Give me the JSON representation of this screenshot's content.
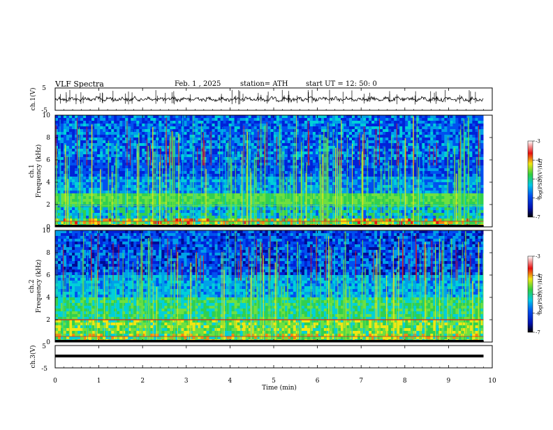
{
  "header": {
    "title": "VLF  Spectra",
    "date": "Feb. 1  , 2025",
    "station": "station= ATH",
    "start": "start  UT  =    12: 50: 0"
  },
  "chart_data": [
    {
      "type": "line",
      "panel": "ch1-waveform",
      "ylabel": "ch.1(V)",
      "ylim": [
        -5,
        5
      ],
      "yticks": [
        "5",
        "-5"
      ],
      "xlim": [
        0,
        10
      ],
      "data_end_min": 9.8,
      "description_series": "noisy waveform near 0 V with sharp spikes"
    },
    {
      "type": "heatmap",
      "panel": "ch1-spectrogram",
      "ylabel": "ch.1\nFrequency  (kHz)",
      "ylabel_line1": "ch.1",
      "ylabel_line2": "Frequency  (kHz)",
      "ylim": [
        0,
        10
      ],
      "yticks": [
        "0",
        "2",
        "4",
        "6",
        "8",
        "10"
      ],
      "xlim": [
        0,
        10
      ],
      "data_end_min": 9.8,
      "colorbar": {
        "label": "log(PSD)(V²/Hz)",
        "range": [
          -7,
          -3
        ],
        "ticks": [
          "-3",
          "-4",
          "-5",
          "-6",
          "-7"
        ]
      }
    },
    {
      "type": "heatmap",
      "panel": "ch2-spectrogram",
      "ylabel_line1": "ch.2",
      "ylabel_line2": "Frequency  (kHz)",
      "ylim": [
        0,
        10
      ],
      "yticks": [
        "0",
        "2",
        "4",
        "6",
        "8",
        "10"
      ],
      "xlim": [
        0,
        10
      ],
      "data_end_min": 9.8,
      "colorbar": {
        "label": "log(PSD)(V²/Hz)",
        "range": [
          -7,
          -3
        ],
        "ticks": [
          "-3",
          "-4",
          "-5",
          "-6",
          "-7"
        ]
      }
    },
    {
      "type": "line",
      "panel": "ch3-waveform",
      "ylabel": "ch.3(V)",
      "ylim": [
        -5,
        5
      ],
      "yticks": [
        "5",
        "-5"
      ],
      "xlim": [
        0,
        10
      ],
      "data_end_min": 9.8,
      "flat_level": 0.3
    }
  ],
  "xaxis": {
    "label": "Time  (min)",
    "ticks": [
      "0",
      "1",
      "2",
      "3",
      "4",
      "5",
      "6",
      "7",
      "8",
      "9",
      "10"
    ]
  },
  "colors": {
    "black": "#000000",
    "blue": "#0010c8",
    "cyan": "#00c8e0",
    "green": "#3cd23c",
    "yellow": "#f0e614",
    "red": "#e61414"
  }
}
